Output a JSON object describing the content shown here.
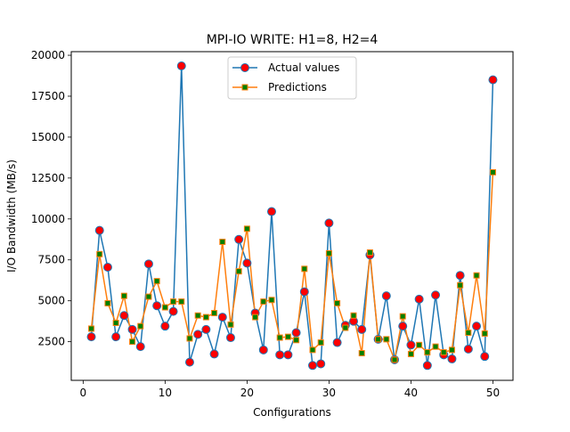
{
  "chart_data": {
    "type": "line",
    "title": "MPI-IO WRITE: H1=8, H2=4",
    "xlabel": "Configurations",
    "ylabel": "I/O Bandwidth (MB/s)",
    "xlim": [
      -1.45,
      52.45
    ],
    "ylim": [
      140,
      20220
    ],
    "xticks": [
      0,
      10,
      20,
      30,
      40,
      50
    ],
    "xtick_labels": [
      "0",
      "10",
      "20",
      "30",
      "40",
      "50"
    ],
    "yticks": [
      2500,
      5000,
      7500,
      10000,
      12500,
      15000,
      17500,
      20000
    ],
    "ytick_labels": [
      "2500",
      "5000",
      "7500",
      "10000",
      "12500",
      "15000",
      "17500",
      "20000"
    ],
    "grid": false,
    "legend_position": "upper center",
    "x": [
      1,
      2,
      3,
      4,
      5,
      6,
      7,
      8,
      9,
      10,
      11,
      12,
      13,
      14,
      15,
      16,
      17,
      18,
      19,
      20,
      21,
      22,
      23,
      24,
      25,
      26,
      27,
      28,
      29,
      30,
      31,
      32,
      33,
      34,
      35,
      36,
      37,
      38,
      39,
      40,
      41,
      42,
      43,
      44,
      45,
      46,
      47,
      48,
      49,
      50
    ],
    "series": [
      {
        "name": "Actual values",
        "color": "#1f77b4",
        "marker": "circle",
        "marker_face": "#ff0000",
        "values": [
          2800,
          9300,
          7050,
          2800,
          4100,
          3250,
          2200,
          7250,
          4700,
          3450,
          4350,
          19350,
          1250,
          2950,
          3250,
          1750,
          4000,
          2750,
          8750,
          7300,
          4250,
          2000,
          10450,
          1700,
          1700,
          3050,
          5550,
          1050,
          1150,
          9750,
          2450,
          3500,
          3750,
          3250,
          7800,
          2650,
          5300,
          1400,
          3450,
          2300,
          5100,
          1050,
          5350,
          1700,
          1450,
          6550,
          2050,
          3450,
          1600,
          18500
        ]
      },
      {
        "name": "Predictions",
        "color": "#ff7f0e",
        "marker": "square",
        "marker_face": "#008000",
        "values": [
          3300,
          7850,
          4850,
          3650,
          5300,
          2500,
          3450,
          5250,
          6200,
          4600,
          4950,
          4950,
          2700,
          4100,
          4000,
          4250,
          8600,
          3550,
          6800,
          9400,
          4000,
          4950,
          5050,
          2750,
          2800,
          2600,
          6950,
          2000,
          2450,
          7900,
          4850,
          3350,
          4100,
          1800,
          7950,
          2650,
          2650,
          1400,
          4050,
          1750,
          2300,
          1850,
          2200,
          1850,
          2000,
          5950,
          3050,
          6550,
          3000,
          12850
        ]
      }
    ]
  }
}
